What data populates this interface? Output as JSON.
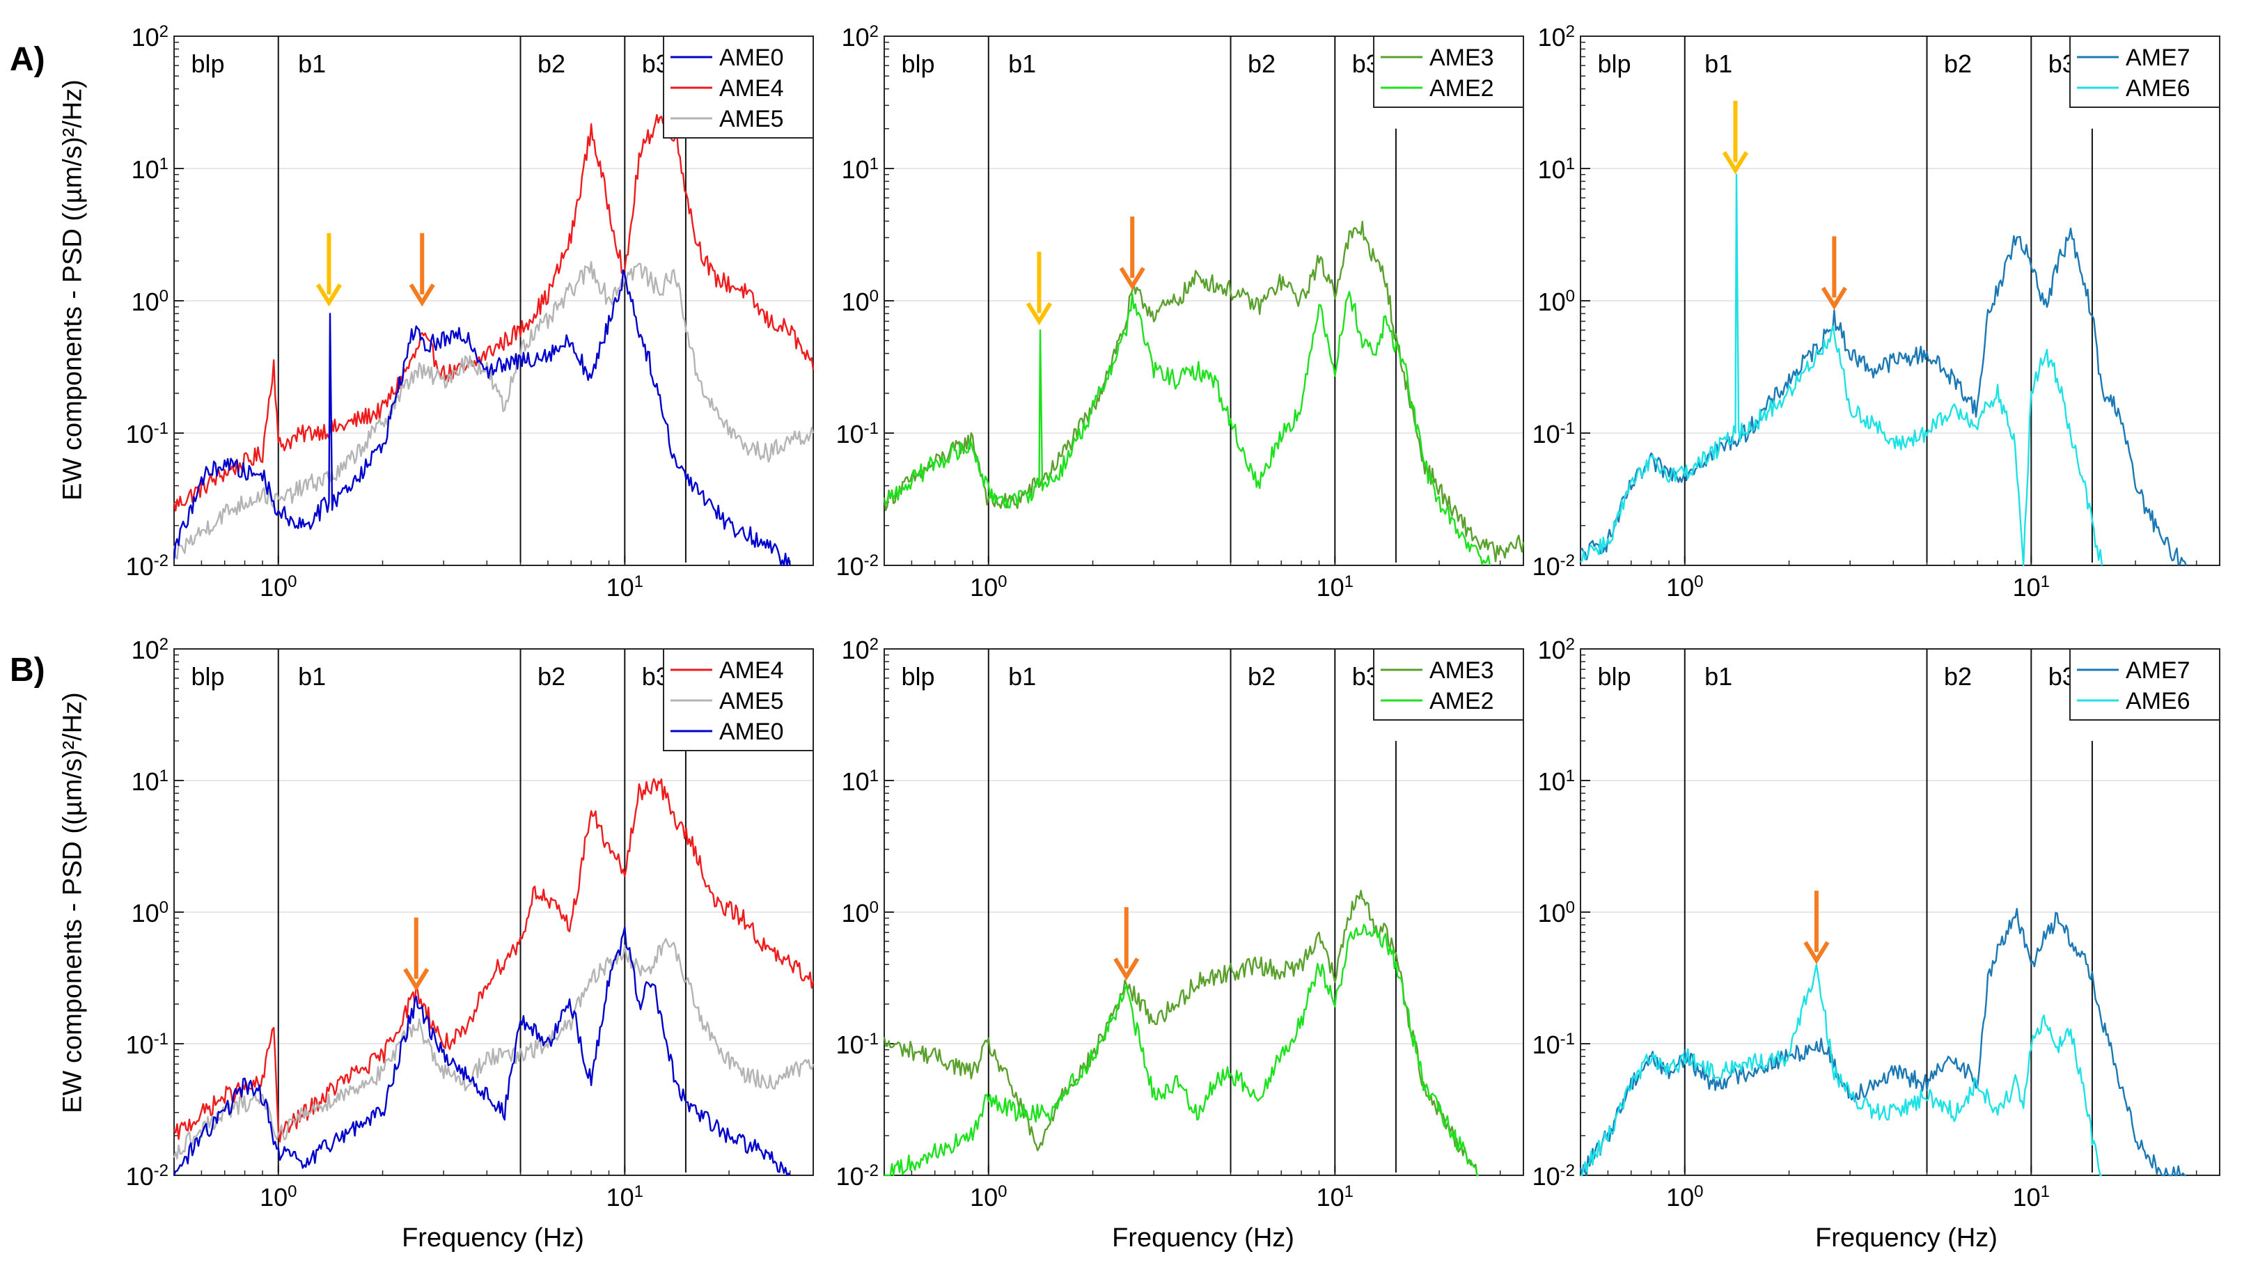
{
  "row_labels": [
    "A)",
    "B)"
  ],
  "ylabel": "EW components - PSD ((µm/s)²/Hz)",
  "xlabel": "Frequency (Hz)",
  "band_labels": [
    "blp",
    "b1",
    "b2",
    "b3"
  ],
  "band_edges_hz": [
    1.0,
    5.0,
    10.0,
    15.0
  ],
  "colors": {
    "AME0": "#0000cc",
    "AME4": "#ee1c1c",
    "AME5": "#b4b4b4",
    "AME3": "#5aa02c",
    "AME2": "#1ee11e",
    "AME7": "#1a78b4",
    "AME6": "#1ee1e6",
    "arrow_yellow": "#ffc000",
    "arrow_orange": "#f47b20"
  },
  "chart_data": [
    {
      "id": "A1",
      "type": "line",
      "xscale": "log",
      "yscale": "log",
      "xlim": [
        0.5,
        35
      ],
      "ylim": [
        0.01,
        100
      ],
      "xticks": [
        "10^0",
        "10^1"
      ],
      "yticks": [
        "10^-2",
        "10^-1",
        "10^0",
        "10^1",
        "10^2"
      ],
      "legend": [
        "AME0",
        "AME4",
        "AME5"
      ],
      "arrows": [
        {
          "x": 1.4,
          "y": 0.9,
          "color": "yellow"
        },
        {
          "x": 2.6,
          "y": 0.9,
          "color": "orange"
        }
      ],
      "series": [
        {
          "name": "AME4",
          "x": [
            0.5,
            0.7,
            0.9,
            0.97,
            1.0,
            1.2,
            1.5,
            2.0,
            2.5,
            2.6,
            3.0,
            3.5,
            4.0,
            5.0,
            6.0,
            7.0,
            8.0,
            9.0,
            10.0,
            11.0,
            12.5,
            14.0,
            16.0,
            18.0,
            22.0,
            26.0,
            30.0,
            35.0
          ],
          "y": [
            0.028,
            0.05,
            0.07,
            0.35,
            0.08,
            0.1,
            0.11,
            0.15,
            0.4,
            0.55,
            0.28,
            0.3,
            0.4,
            0.6,
            1.1,
            3.0,
            20.0,
            5.0,
            1.5,
            12.0,
            25.0,
            18.0,
            3.0,
            1.5,
            1.2,
            0.7,
            0.6,
            0.3
          ]
        },
        {
          "name": "AME5",
          "x": [
            0.5,
            0.7,
            0.9,
            1.0,
            1.2,
            1.5,
            2.0,
            2.5,
            3.0,
            3.5,
            4.0,
            4.5,
            5.0,
            6.0,
            7.0,
            8.0,
            9.0,
            10.0,
            11.0,
            12.5,
            14.0,
            16.0,
            18.0,
            22.0,
            26.0,
            30.0,
            35.0
          ],
          "y": [
            0.012,
            0.025,
            0.035,
            0.03,
            0.04,
            0.05,
            0.12,
            0.3,
            0.25,
            0.35,
            0.3,
            0.15,
            0.45,
            0.7,
            1.2,
            1.8,
            1.0,
            1.5,
            1.8,
            1.2,
            1.6,
            0.3,
            0.15,
            0.08,
            0.07,
            0.09,
            0.1
          ]
        },
        {
          "name": "AME0",
          "x": [
            0.5,
            0.6,
            0.7,
            0.8,
            0.9,
            1.0,
            1.2,
            1.4,
            1.41,
            1.43,
            1.6,
            2.0,
            2.5,
            2.6,
            3.0,
            3.5,
            4.0,
            5.0,
            6.0,
            7.0,
            8.0,
            9.0,
            10.0,
            11.0,
            12.0,
            14.0,
            16.0,
            20.0,
            25.0,
            30.0
          ],
          "y": [
            0.012,
            0.045,
            0.06,
            0.05,
            0.05,
            0.025,
            0.02,
            0.03,
            0.8,
            0.03,
            0.04,
            0.08,
            0.7,
            0.45,
            0.5,
            0.55,
            0.3,
            0.35,
            0.4,
            0.5,
            0.25,
            0.7,
            1.6,
            0.6,
            0.3,
            0.06,
            0.04,
            0.02,
            0.015,
            0.01
          ]
        }
      ]
    },
    {
      "id": "A2",
      "type": "line",
      "xscale": "log",
      "yscale": "log",
      "xlim": [
        0.5,
        35
      ],
      "ylim": [
        0.01,
        100
      ],
      "xticks": [
        "10^0",
        "10^1"
      ],
      "yticks": [
        "10^-2",
        "10^-1",
        "10^0",
        "10^1",
        "10^2"
      ],
      "legend": [
        "AME3",
        "AME2"
      ],
      "arrows": [
        {
          "x": 1.4,
          "y": 0.65,
          "color": "yellow"
        },
        {
          "x": 2.6,
          "y": 1.2,
          "color": "orange"
        }
      ],
      "series": [
        {
          "name": "AME3",
          "x": [
            0.5,
            0.7,
            0.9,
            1.0,
            1.2,
            1.5,
            2.0,
            2.5,
            2.6,
            3.0,
            3.5,
            4.0,
            5.0,
            6.0,
            7.0,
            8.0,
            9.0,
            10.0,
            11.0,
            12.0,
            13.0,
            14.0,
            15.0,
            16.0,
            18.0,
            22.0,
            26.0,
            30.0,
            35.0
          ],
          "y": [
            0.03,
            0.06,
            0.09,
            0.03,
            0.03,
            0.05,
            0.15,
            0.7,
            1.2,
            0.8,
            1.0,
            1.5,
            1.2,
            0.9,
            1.4,
            1.0,
            2.0,
            1.2,
            3.0,
            3.5,
            2.0,
            1.5,
            0.5,
            0.25,
            0.06,
            0.025,
            0.015,
            0.012,
            0.015
          ]
        },
        {
          "name": "AME2",
          "x": [
            0.5,
            0.7,
            0.9,
            1.0,
            1.2,
            1.4,
            1.41,
            1.43,
            1.6,
            2.0,
            2.5,
            2.6,
            3.0,
            3.5,
            4.0,
            4.5,
            5.0,
            6.0,
            7.0,
            8.0,
            9.0,
            10.0,
            11.0,
            12.0,
            13.0,
            14.0,
            16.0,
            18.0,
            20.0,
            24.0,
            28.0
          ],
          "y": [
            0.03,
            0.06,
            0.08,
            0.035,
            0.03,
            0.04,
            0.6,
            0.04,
            0.05,
            0.15,
            0.6,
            1.1,
            0.3,
            0.25,
            0.3,
            0.25,
            0.12,
            0.04,
            0.1,
            0.15,
            1.0,
            0.3,
            1.2,
            0.5,
            0.4,
            0.7,
            0.3,
            0.06,
            0.03,
            0.015,
            0.01
          ]
        }
      ]
    },
    {
      "id": "A3",
      "type": "line",
      "xscale": "log",
      "yscale": "log",
      "xlim": [
        0.5,
        35
      ],
      "ylim": [
        0.01,
        100
      ],
      "xticks": [
        "10^0",
        "10^1"
      ],
      "yticks": [
        "10^-2",
        "10^-1",
        "10^0",
        "10^1",
        "10^2"
      ],
      "legend": [
        "AME7",
        "AME6"
      ],
      "arrows": [
        {
          "x": 1.4,
          "y": 9.0,
          "color": "yellow"
        },
        {
          "x": 2.7,
          "y": 0.85,
          "color": "orange"
        }
      ],
      "series": [
        {
          "name": "AME7",
          "x": [
            0.5,
            0.6,
            0.7,
            0.8,
            0.9,
            1.0,
            1.2,
            1.5,
            2.0,
            2.5,
            2.7,
            3.0,
            3.5,
            4.0,
            5.0,
            6.0,
            7.0,
            7.5,
            8.0,
            9.0,
            10.0,
            11.0,
            12.0,
            13.0,
            14.0,
            15.0,
            16.0,
            18.0,
            20.0,
            24.0,
            28.0
          ],
          "y": [
            0.012,
            0.015,
            0.04,
            0.06,
            0.05,
            0.05,
            0.07,
            0.1,
            0.25,
            0.5,
            0.75,
            0.4,
            0.3,
            0.35,
            0.4,
            0.25,
            0.15,
            0.8,
            1.2,
            3.0,
            2.0,
            0.9,
            2.0,
            3.2,
            1.5,
            0.8,
            0.2,
            0.15,
            0.04,
            0.015,
            0.01
          ]
        },
        {
          "name": "AME6",
          "x": [
            0.5,
            0.6,
            0.7,
            0.8,
            0.9,
            1.0,
            1.2,
            1.4,
            1.41,
            1.43,
            1.6,
            2.0,
            2.5,
            2.7,
            3.0,
            3.5,
            4.0,
            5.0,
            6.0,
            7.0,
            8.0,
            9.0,
            9.5,
            10.0,
            11.0,
            12.0,
            13.0,
            14.0,
            15.0,
            16.0
          ],
          "y": [
            0.012,
            0.015,
            0.04,
            0.06,
            0.05,
            0.05,
            0.07,
            0.1,
            9.0,
            0.1,
            0.12,
            0.2,
            0.45,
            0.6,
            0.15,
            0.12,
            0.08,
            0.1,
            0.15,
            0.12,
            0.2,
            0.08,
            0.01,
            0.2,
            0.4,
            0.25,
            0.1,
            0.05,
            0.02,
            0.01
          ]
        }
      ]
    },
    {
      "id": "B1",
      "type": "line",
      "xscale": "log",
      "yscale": "log",
      "xlim": [
        0.5,
        35
      ],
      "ylim": [
        0.01,
        100
      ],
      "xticks": [
        "10^0",
        "10^1"
      ],
      "yticks": [
        "10^-2",
        "10^-1",
        "10^0",
        "10^1",
        "10^2"
      ],
      "legend": [
        "AME4",
        "AME5",
        "AME0"
      ],
      "arrows": [
        {
          "x": 2.5,
          "y": 0.25,
          "color": "orange"
        }
      ],
      "series": [
        {
          "name": "AME4",
          "x": [
            0.5,
            0.7,
            0.9,
            0.97,
            1.0,
            1.2,
            1.5,
            2.0,
            2.5,
            3.0,
            3.5,
            4.0,
            5.0,
            5.5,
            6.0,
            7.0,
            8.0,
            9.0,
            10.0,
            11.0,
            12.5,
            14.0,
            16.0,
            18.0,
            22.0,
            26.0,
            30.0,
            35.0
          ],
          "y": [
            0.02,
            0.04,
            0.05,
            0.15,
            0.02,
            0.03,
            0.05,
            0.08,
            0.25,
            0.1,
            0.12,
            0.3,
            0.6,
            1.5,
            1.2,
            0.8,
            6.0,
            3.0,
            2.0,
            8.0,
            10.0,
            5.0,
            3.0,
            1.2,
            0.9,
            0.5,
            0.4,
            0.3
          ]
        },
        {
          "name": "AME5",
          "x": [
            0.5,
            0.7,
            0.9,
            1.0,
            1.2,
            1.5,
            2.0,
            2.5,
            3.0,
            3.5,
            4.0,
            5.0,
            6.0,
            7.0,
            8.0,
            9.0,
            10.0,
            11.0,
            12.0,
            13.0,
            14.0,
            16.0,
            18.0,
            22.0,
            26.0,
            30.0,
            35.0
          ],
          "y": [
            0.015,
            0.03,
            0.04,
            0.02,
            0.03,
            0.04,
            0.06,
            0.15,
            0.06,
            0.05,
            0.08,
            0.08,
            0.1,
            0.15,
            0.3,
            0.4,
            0.5,
            0.35,
            0.4,
            0.6,
            0.5,
            0.2,
            0.1,
            0.06,
            0.05,
            0.06,
            0.07
          ]
        },
        {
          "name": "AME0",
          "x": [
            0.5,
            0.6,
            0.7,
            0.8,
            0.9,
            1.0,
            1.2,
            1.5,
            2.0,
            2.5,
            3.0,
            3.5,
            4.0,
            4.5,
            5.0,
            6.0,
            7.0,
            8.0,
            9.0,
            10.0,
            11.0,
            12.0,
            14.0,
            16.0,
            20.0,
            25.0,
            30.0
          ],
          "y": [
            0.01,
            0.02,
            0.03,
            0.05,
            0.04,
            0.015,
            0.012,
            0.02,
            0.03,
            0.22,
            0.08,
            0.06,
            0.04,
            0.03,
            0.15,
            0.1,
            0.2,
            0.05,
            0.3,
            0.7,
            0.2,
            0.3,
            0.05,
            0.03,
            0.02,
            0.015,
            0.01
          ]
        }
      ]
    },
    {
      "id": "B2",
      "type": "line",
      "xscale": "log",
      "yscale": "log",
      "xlim": [
        0.5,
        35
      ],
      "ylim": [
        0.01,
        100
      ],
      "xticks": [
        "10^0",
        "10^1"
      ],
      "yticks": [
        "10^-2",
        "10^-1",
        "10^0",
        "10^1",
        "10^2"
      ],
      "legend": [
        "AME3",
        "AME2"
      ],
      "arrows": [
        {
          "x": 2.5,
          "y": 0.3,
          "color": "orange"
        }
      ],
      "series": [
        {
          "name": "AME3",
          "x": [
            0.5,
            0.7,
            0.9,
            1.0,
            1.2,
            1.4,
            1.6,
            2.0,
            2.5,
            3.0,
            3.5,
            4.0,
            5.0,
            6.0,
            7.0,
            8.0,
            9.0,
            10.0,
            11.0,
            12.0,
            13.0,
            14.0,
            15.0,
            16.0,
            18.0,
            22.0,
            26.0
          ],
          "y": [
            0.1,
            0.08,
            0.06,
            0.1,
            0.04,
            0.015,
            0.04,
            0.08,
            0.28,
            0.15,
            0.2,
            0.3,
            0.35,
            0.4,
            0.35,
            0.4,
            0.7,
            0.3,
            1.0,
            1.3,
            0.8,
            0.7,
            0.5,
            0.2,
            0.05,
            0.02,
            0.01
          ]
        },
        {
          "name": "AME2",
          "x": [
            0.5,
            0.7,
            0.9,
            1.0,
            1.2,
            1.5,
            2.0,
            2.5,
            3.0,
            3.5,
            4.0,
            4.5,
            5.0,
            6.0,
            7.0,
            8.0,
            9.0,
            10.0,
            11.0,
            12.0,
            13.0,
            14.0,
            15.0,
            16.0,
            18.0,
            22.0,
            26.0
          ],
          "y": [
            0.01,
            0.015,
            0.02,
            0.04,
            0.03,
            0.03,
            0.08,
            0.25,
            0.04,
            0.05,
            0.03,
            0.05,
            0.06,
            0.04,
            0.08,
            0.15,
            0.4,
            0.2,
            0.6,
            0.8,
            0.7,
            0.6,
            0.4,
            0.2,
            0.05,
            0.02,
            0.01
          ]
        }
      ]
    },
    {
      "id": "B3",
      "type": "line",
      "xscale": "log",
      "yscale": "log",
      "xlim": [
        0.5,
        35
      ],
      "ylim": [
        0.01,
        100
      ],
      "xticks": [
        "10^0",
        "10^1"
      ],
      "yticks": [
        "10^-2",
        "10^-1",
        "10^0",
        "10^1",
        "10^2"
      ],
      "legend": [
        "AME7",
        "AME6"
      ],
      "arrows": [
        {
          "x": 2.4,
          "y": 0.4,
          "color": "orange"
        }
      ],
      "series": [
        {
          "name": "AME7",
          "x": [
            0.5,
            0.6,
            0.7,
            0.8,
            0.9,
            1.0,
            1.2,
            1.5,
            2.0,
            2.5,
            3.0,
            3.5,
            4.0,
            5.0,
            6.0,
            7.0,
            7.5,
            8.0,
            9.0,
            10.0,
            11.0,
            12.0,
            13.0,
            14.0,
            15.0,
            16.0,
            18.0,
            20.0,
            24.0,
            28.0
          ],
          "y": [
            0.01,
            0.02,
            0.05,
            0.08,
            0.06,
            0.08,
            0.05,
            0.06,
            0.08,
            0.1,
            0.04,
            0.05,
            0.06,
            0.05,
            0.08,
            0.05,
            0.3,
            0.5,
            1.0,
            0.4,
            0.7,
            0.9,
            0.6,
            0.5,
            0.3,
            0.15,
            0.05,
            0.02,
            0.01,
            0.01
          ]
        },
        {
          "name": "AME6",
          "x": [
            0.5,
            0.6,
            0.7,
            0.8,
            0.9,
            1.0,
            1.2,
            1.5,
            2.0,
            2.4,
            2.7,
            3.0,
            3.5,
            4.0,
            5.0,
            6.0,
            7.0,
            8.0,
            9.0,
            9.5,
            10.0,
            11.0,
            12.0,
            13.0,
            14.0,
            15.0,
            16.0
          ],
          "y": [
            0.01,
            0.02,
            0.05,
            0.08,
            0.06,
            0.08,
            0.06,
            0.07,
            0.08,
            0.4,
            0.06,
            0.04,
            0.03,
            0.03,
            0.04,
            0.03,
            0.05,
            0.03,
            0.05,
            0.03,
            0.1,
            0.15,
            0.1,
            0.12,
            0.05,
            0.02,
            0.01
          ]
        }
      ]
    }
  ]
}
